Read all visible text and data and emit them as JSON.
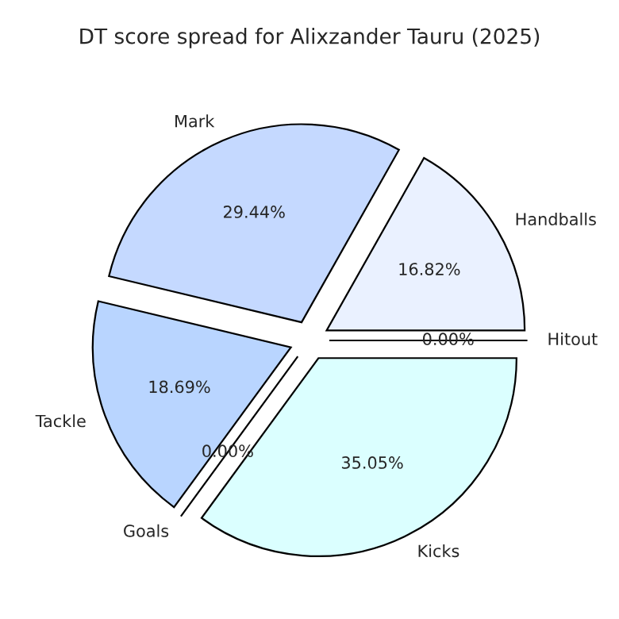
{
  "chart_data": {
    "type": "pie",
    "title": "DT score spread for Alixzander Tauru (2025)",
    "categories": [
      "Handballs",
      "Mark",
      "Tackle",
      "Goals",
      "Kicks",
      "Hitout"
    ],
    "values": [
      16.82,
      29.44,
      18.69,
      0.0,
      35.05,
      0.0
    ],
    "value_labels": [
      "16.82%",
      "29.44%",
      "18.69%",
      "0.00%",
      "35.05%",
      "0.00%"
    ],
    "colors": [
      "#eaf1ff",
      "#c5d9ff",
      "#b9d5ff",
      "#b0d0ff",
      "#dbffff",
      "#e0f0ff"
    ]
  }
}
